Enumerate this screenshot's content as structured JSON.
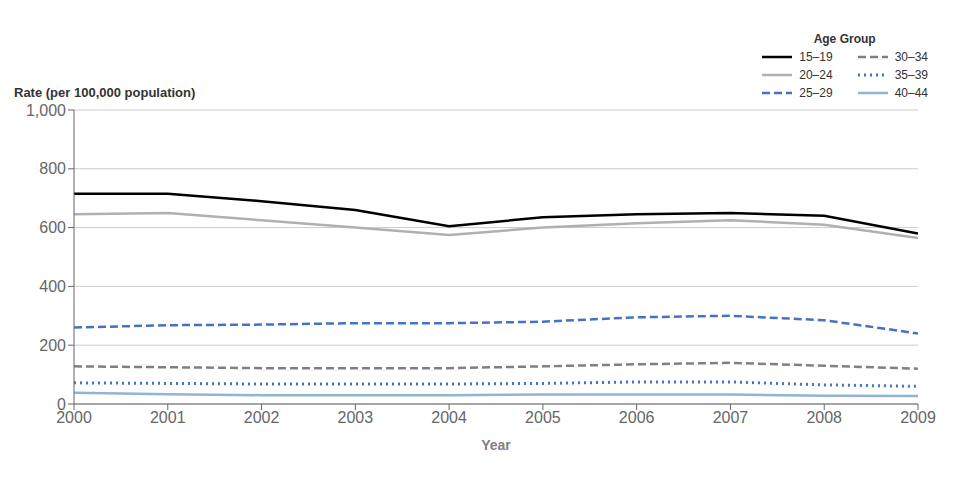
{
  "chart_data": {
    "type": "line",
    "xlabel": "Year",
    "ylabel": "Rate (per 100,000 population)",
    "legend_title": "Age Group",
    "x": [
      2000,
      2001,
      2002,
      2003,
      2004,
      2005,
      2006,
      2007,
      2008,
      2009
    ],
    "xlim": [
      2000,
      2009
    ],
    "xticks": [
      2000,
      2001,
      2002,
      2003,
      2004,
      2005,
      2006,
      2007,
      2008,
      2009
    ],
    "ylim": [
      0,
      1000
    ],
    "yticks": [
      0,
      200,
      400,
      600,
      800,
      {
        "value": 1000,
        "label": "1,000"
      }
    ],
    "grid": true,
    "legend": "upper right",
    "series": [
      {
        "name": "15–19",
        "color": "#000000",
        "line_style": "solid",
        "values": [
          715,
          715,
          690,
          660,
          605,
          635,
          645,
          650,
          640,
          580
        ]
      },
      {
        "name": "20–24",
        "color": "#b0b0b0",
        "line_style": "solid",
        "values": [
          645,
          650,
          625,
          600,
          575,
          600,
          615,
          625,
          610,
          565
        ]
      },
      {
        "name": "25–29",
        "color": "#4472c4",
        "line_style": "dashed",
        "values": [
          260,
          268,
          270,
          275,
          275,
          280,
          295,
          300,
          285,
          240
        ]
      },
      {
        "name": "30–34",
        "color": "#808080",
        "line_style": "dashed",
        "values": [
          128,
          125,
          122,
          122,
          122,
          128,
          135,
          140,
          130,
          120
        ]
      },
      {
        "name": "35–39",
        "color": "#4472c4",
        "line_style": "dotted",
        "values": [
          72,
          70,
          68,
          68,
          68,
          70,
          75,
          75,
          65,
          60
        ]
      },
      {
        "name": "40–44",
        "color": "#92b4d4",
        "line_style": "solid",
        "values": [
          38,
          33,
          30,
          30,
          30,
          32,
          32,
          32,
          28,
          27
        ]
      }
    ]
  }
}
